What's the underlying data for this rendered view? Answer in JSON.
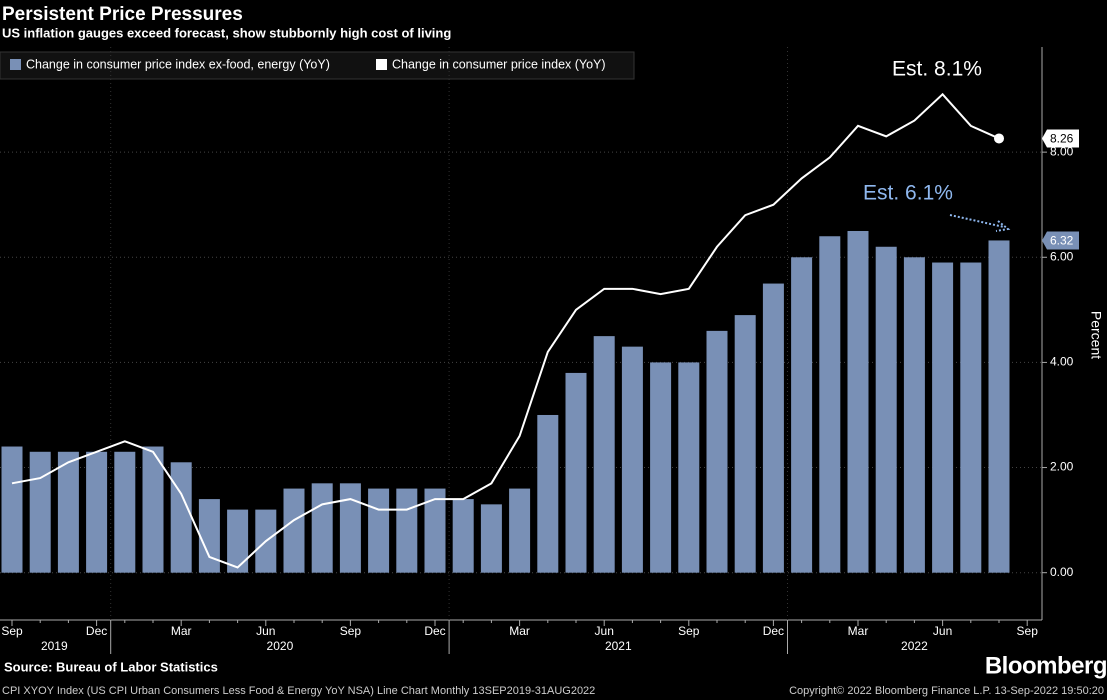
{
  "chart_data": {
    "type": "bar",
    "title": "Persistent Price Pressures",
    "subtitle": "US inflation gauges exceed forecast, show stubbornly high cost of living",
    "y_label": "Percent",
    "categories": [
      "Sep",
      null,
      null,
      "Dec",
      null,
      null,
      "Mar",
      null,
      null,
      "Jun",
      null,
      null,
      "Sep",
      null,
      null,
      "Dec",
      null,
      null,
      "Mar",
      null,
      null,
      "Jun",
      null,
      null,
      "Sep",
      null,
      null,
      "Dec",
      null,
      null,
      "Mar",
      null,
      null,
      "Jun",
      null,
      null,
      "Sep"
    ],
    "years": [
      "2019",
      "2020",
      "2021",
      "2022"
    ],
    "series": [
      {
        "name": "Change in consumer price index ex-food, energy (YoY)",
        "type": "bar",
        "color": "#7990b6",
        "values": [
          2.4,
          2.3,
          2.3,
          2.3,
          2.3,
          2.4,
          2.1,
          1.4,
          1.2,
          1.2,
          1.6,
          1.7,
          1.7,
          1.6,
          1.6,
          1.6,
          1.4,
          1.3,
          1.6,
          3.0,
          3.8,
          4.5,
          4.3,
          4.0,
          4.0,
          4.6,
          4.9,
          5.5,
          6.0,
          6.4,
          6.5,
          6.2,
          6.0,
          5.9,
          5.9,
          6.32,
          null
        ]
      },
      {
        "name": "Change in consumer price index (YoY)",
        "type": "line",
        "color": "#ffffff",
        "values": [
          1.7,
          1.8,
          2.1,
          2.3,
          2.5,
          2.3,
          1.5,
          0.3,
          0.1,
          0.6,
          1.0,
          1.3,
          1.4,
          1.2,
          1.2,
          1.4,
          1.4,
          1.7,
          2.6,
          4.2,
          5.0,
          5.4,
          5.4,
          5.3,
          5.4,
          6.2,
          6.8,
          7.0,
          7.5,
          7.9,
          8.5,
          8.3,
          8.6,
          9.1,
          8.5,
          8.26,
          null
        ]
      }
    ],
    "ylim": [
      -0.9,
      10
    ],
    "yticks": [
      {
        "value": 0,
        "label": "0.00"
      },
      {
        "value": 2,
        "label": "2.00"
      },
      {
        "value": 4,
        "label": "4.00"
      },
      {
        "value": 6,
        "label": "6.00"
      },
      {
        "value": 8,
        "label": "8.00"
      }
    ],
    "grid": true,
    "legend": "top-left",
    "annotations": [
      {
        "text": "Est. 8.1%",
        "color": "#ffffff"
      },
      {
        "text": "Est. 6.1%",
        "color": "#8fb8ef"
      }
    ]
  },
  "source": "Source: Bureau of Labor Statistics",
  "brand": "Bloomberg",
  "footer": {
    "left": "CPI XYOY Index (US CPI Urban Consumers Less Food & Energy YoY NSA) Line Chart  Monthly 13SEP2019-31AUG2022",
    "right": "Copyright© 2022 Bloomberg Finance L.P.    13-Sep-2022 19:50:20"
  }
}
